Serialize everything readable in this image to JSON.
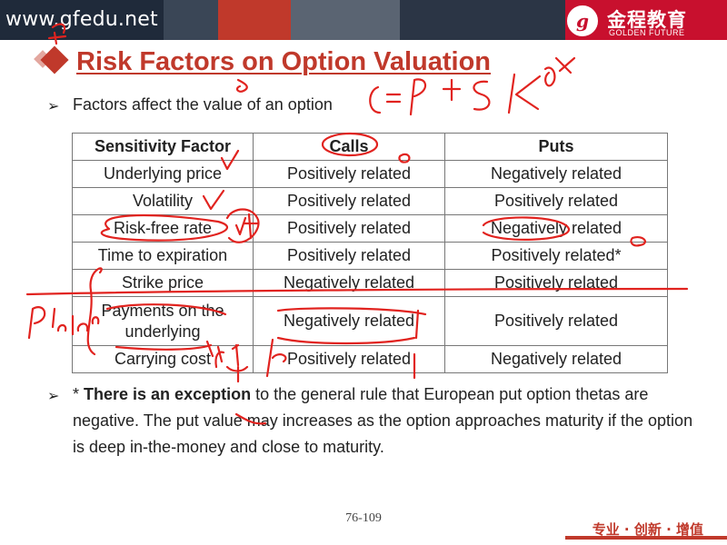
{
  "header": {
    "site": "www.gfedu.net",
    "logo_mark": "g",
    "logo_cn": "金程教育",
    "logo_en": "GOLDEN FUTURE",
    "bar_color": "#1f2a3a"
  },
  "slide": {
    "title": "Risk Factors on Option Valuation",
    "bullet1": "Factors affect the value of an option",
    "table": {
      "headers": [
        "Sensitivity Factor",
        "Calls",
        "Puts"
      ],
      "rows": [
        [
          "Underlying price",
          "Positively related",
          "Negatively related"
        ],
        [
          "Volatility",
          "Positively related",
          "Positively related"
        ],
        [
          "Risk-free rate",
          "Positively related",
          "Negatively related"
        ],
        [
          "Time to expiration",
          "Positively related",
          "Positively related*"
        ],
        [
          "Strike price",
          "Negatively related",
          "Positively related"
        ],
        [
          "Payments on the underlying",
          "Negatively related",
          "Positively related"
        ],
        [
          "Carrying cost",
          "Positively related",
          "Negatively related"
        ]
      ]
    },
    "note_bold": "There is an exception",
    "note_rest": " to the general rule that European put option thetas are negative. The put value may increases as the option approaches maturity if the option is deep in-the-money and close to maturity.",
    "note_star": "* "
  },
  "footer": {
    "page": "76-109",
    "slogan": "专业 · 创新 · 增值"
  },
  "colors": {
    "accent": "#c0392b",
    "ink": "#e1231f"
  },
  "icons": [
    "arrow-bullet-icon",
    "diamond-icon",
    "logo-seal-icon"
  ]
}
